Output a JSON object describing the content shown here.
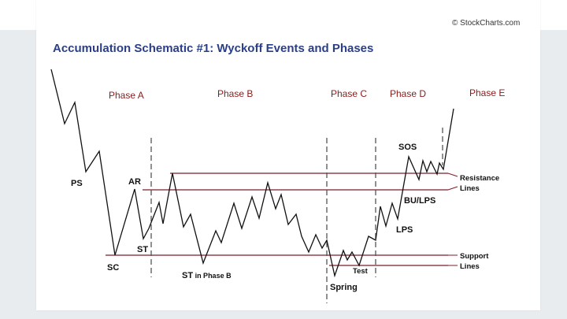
{
  "figure": {
    "credit": "© StockCharts.com",
    "title": "Accumulation Schematic #1: Wyckoff Events and Phases",
    "phases": [
      {
        "id": "a",
        "label": "Phase A"
      },
      {
        "id": "b",
        "label": "Phase B"
      },
      {
        "id": "c",
        "label": "Phase C"
      },
      {
        "id": "d",
        "label": "Phase D"
      },
      {
        "id": "e",
        "label": "Phase E"
      }
    ],
    "events": {
      "ps": "PS",
      "sc": "SC",
      "ar": "AR",
      "st": "ST",
      "st_phase_b_main": "ST",
      "st_phase_b_suffix": " in Phase B",
      "spring": "Spring",
      "test": "Test",
      "lps": "LPS",
      "bu_lps": "BU/LPS",
      "sos": "SOS"
    },
    "line_labels": {
      "resistance_1": "Resistance",
      "resistance_2": "Lines",
      "support_1": "Support",
      "support_2": "Lines"
    },
    "colors": {
      "title": "#2a3f87",
      "phase_label": "#8b1a1a",
      "price_line": "#111111",
      "level_line": "#7a1f2b",
      "divider": "#555555",
      "background_band": "#e9ecef"
    }
  }
}
